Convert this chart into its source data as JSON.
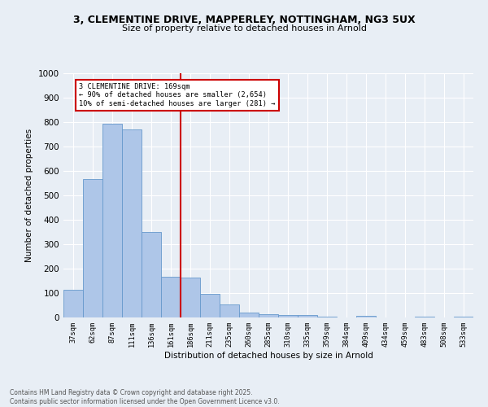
{
  "title_line1": "3, CLEMENTINE DRIVE, MAPPERLEY, NOTTINGHAM, NG3 5UX",
  "title_line2": "Size of property relative to detached houses in Arnold",
  "xlabel": "Distribution of detached houses by size in Arnold",
  "ylabel": "Number of detached properties",
  "categories": [
    "37sqm",
    "62sqm",
    "87sqm",
    "111sqm",
    "136sqm",
    "161sqm",
    "186sqm",
    "211sqm",
    "235sqm",
    "260sqm",
    "285sqm",
    "310sqm",
    "335sqm",
    "359sqm",
    "384sqm",
    "409sqm",
    "434sqm",
    "459sqm",
    "483sqm",
    "508sqm",
    "533sqm"
  ],
  "values": [
    113,
    566,
    793,
    770,
    350,
    168,
    165,
    97,
    55,
    20,
    12,
    10,
    10,
    2,
    0,
    8,
    0,
    0,
    2,
    0,
    2
  ],
  "bar_color": "#aec6e8",
  "bar_edge_color": "#6699cc",
  "vline_x": 5.5,
  "vline_color": "#cc0000",
  "annotation_title": "3 CLEMENTINE DRIVE: 169sqm",
  "annotation_line2": "← 90% of detached houses are smaller (2,654)",
  "annotation_line3": "10% of semi-detached houses are larger (281) →",
  "annotation_box_color": "#cc0000",
  "ylim": [
    0,
    1000
  ],
  "yticks": [
    0,
    100,
    200,
    300,
    400,
    500,
    600,
    700,
    800,
    900,
    1000
  ],
  "footer_line1": "Contains HM Land Registry data © Crown copyright and database right 2025.",
  "footer_line2": "Contains public sector information licensed under the Open Government Licence v3.0.",
  "bg_color": "#e8eef5",
  "plot_bg_color": "#e8eef5"
}
